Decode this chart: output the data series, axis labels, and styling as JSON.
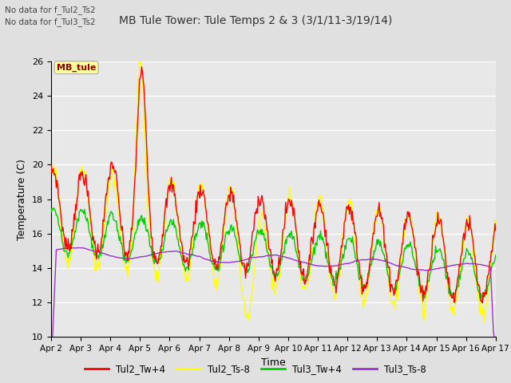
{
  "title": "MB Tule Tower: Tule Temps 2 & 3 (3/1/11-3/19/14)",
  "no_data_text1": "No data for f_Tul2_Ts2",
  "no_data_text2": "No data for f_Tul3_Ts2",
  "mb_tule_label": "MB_tule",
  "xlabel": "Time",
  "ylabel": "Temperature (C)",
  "ylim": [
    10,
    26
  ],
  "yticks": [
    10,
    12,
    14,
    16,
    18,
    20,
    22,
    24,
    26
  ],
  "background_color": "#e0e0e0",
  "axes_bg_color": "#e8e8e8",
  "grid_color": "#ffffff",
  "line_colors": {
    "Tul2_Tw4": "#ff0000",
    "Tul2_Ts8": "#ffff00",
    "Tul3_Tw4": "#00cc00",
    "Tul3_Ts8": "#9933cc"
  },
  "legend_labels": [
    "Tul2_Tw+4",
    "Tul2_Ts-8",
    "Tul3_Tw+4",
    "Tul3_Ts-8"
  ],
  "x_tick_labels": [
    "Apr 2",
    "Apr 3",
    "Apr 4",
    "Apr 5",
    "Apr 6",
    "Apr 7",
    "Apr 8",
    "Apr 9",
    "Apr 10",
    "Apr 11",
    "Apr 12",
    "Apr 13",
    "Apr 14",
    "Apr 15",
    "Apr 16",
    "Apr 17"
  ],
  "num_points": 600
}
